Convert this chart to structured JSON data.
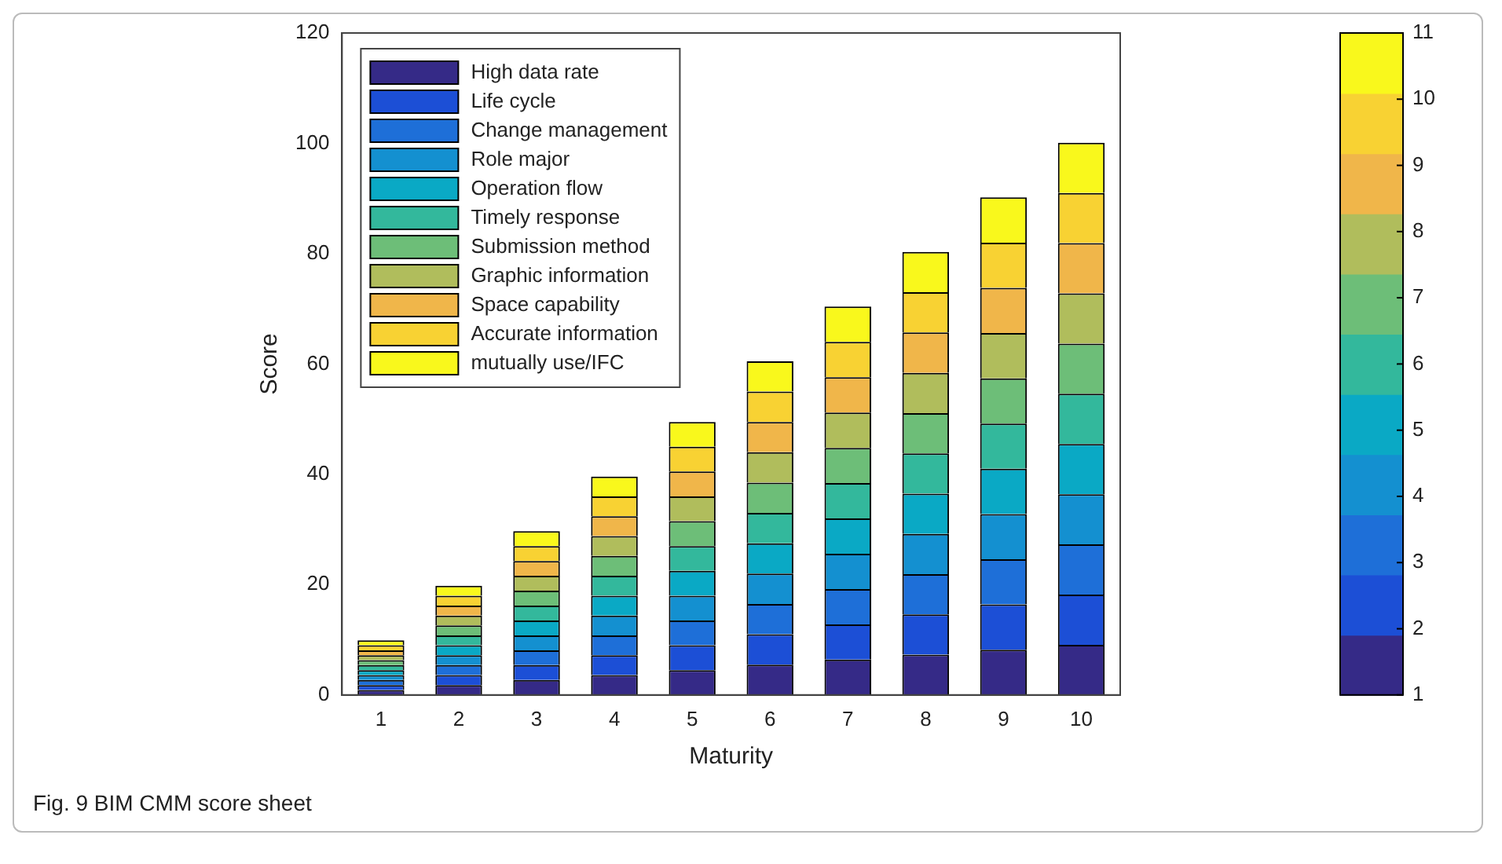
{
  "chart_data": {
    "type": "bar",
    "stacked": true,
    "xlabel": "Maturity",
    "ylabel": "Score",
    "categories": [
      "1",
      "2",
      "3",
      "4",
      "5",
      "6",
      "7",
      "8",
      "9",
      "10"
    ],
    "ylim": [
      0,
      120
    ],
    "yticks": [
      0,
      20,
      40,
      60,
      80,
      100,
      120
    ],
    "grid": false,
    "legend": "top left",
    "clim": [
      1,
      11
    ],
    "cticks": [
      1,
      2,
      3,
      4,
      5,
      6,
      7,
      8,
      9,
      10,
      11
    ],
    "annotations": [
      "Fig. 9 BIM CMM score sheet"
    ],
    "series": [
      {
        "name": "High data rate",
        "color": "#352a87",
        "values": [
          0.9,
          1.8,
          2.7,
          3.6,
          4.5,
          5.5,
          6.4,
          7.3,
          8.2,
          9.1
        ]
      },
      {
        "name": "Life cycle",
        "color": "#1c4fd6",
        "values": [
          0.9,
          1.8,
          2.7,
          3.6,
          4.5,
          5.5,
          6.4,
          7.3,
          8.2,
          9.1
        ]
      },
      {
        "name": "Change management",
        "color": "#1e6fd8",
        "values": [
          0.9,
          1.8,
          2.7,
          3.6,
          4.5,
          5.5,
          6.4,
          7.3,
          8.2,
          9.1
        ]
      },
      {
        "name": "Role major",
        "color": "#1490d0",
        "values": [
          0.9,
          1.8,
          2.7,
          3.6,
          4.5,
          5.5,
          6.4,
          7.3,
          8.2,
          9.1
        ]
      },
      {
        "name": "Operation flow",
        "color": "#0aa9c5",
        "values": [
          0.9,
          1.8,
          2.7,
          3.6,
          4.5,
          5.5,
          6.4,
          7.3,
          8.2,
          9.1
        ]
      },
      {
        "name": "Timely response",
        "color": "#33b89c",
        "values": [
          0.9,
          1.8,
          2.7,
          3.6,
          4.5,
          5.5,
          6.4,
          7.3,
          8.2,
          9.1
        ]
      },
      {
        "name": "Submission method",
        "color": "#6dbe78",
        "values": [
          0.9,
          1.8,
          2.7,
          3.6,
          4.5,
          5.5,
          6.4,
          7.3,
          8.2,
          9.1
        ]
      },
      {
        "name": "Graphic information",
        "color": "#b0bd5c",
        "values": [
          0.9,
          1.8,
          2.7,
          3.6,
          4.5,
          5.5,
          6.4,
          7.3,
          8.2,
          9.1
        ]
      },
      {
        "name": "Space capability",
        "color": "#f0b64a",
        "values": [
          0.9,
          1.8,
          2.7,
          3.6,
          4.5,
          5.5,
          6.4,
          7.3,
          8.2,
          9.1
        ]
      },
      {
        "name": "Accurate information",
        "color": "#f8d233",
        "values": [
          0.9,
          1.8,
          2.7,
          3.6,
          4.5,
          5.5,
          6.4,
          7.3,
          8.2,
          9.1
        ]
      },
      {
        "name": "mutually use/IFC",
        "color": "#f9f81c",
        "values": [
          0.9,
          1.8,
          2.7,
          3.6,
          4.5,
          5.5,
          6.4,
          7.3,
          8.2,
          9.1
        ]
      }
    ]
  }
}
